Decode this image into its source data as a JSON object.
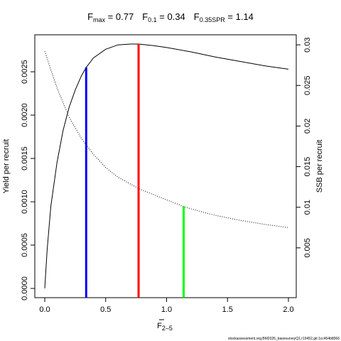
{
  "chart_data": {
    "type": "line",
    "title": {
      "items": [
        {
          "symbol": "F",
          "subscript": "max",
          "value": "0.77"
        },
        {
          "symbol": "F",
          "subscript": "0.1",
          "value": "0.34"
        },
        {
          "symbol": "F",
          "subscript": "0.35SPR",
          "value": "1.14"
        }
      ]
    },
    "xlabel": {
      "symbol": "F",
      "subscript": "2–5",
      "overline": true
    },
    "ylabel": "Yield per recruit",
    "y2label": "SSB per recruit",
    "xlim": [
      0,
      2.0
    ],
    "ylim": [
      0,
      0.00282
    ],
    "y2lim": [
      0,
      0.0301
    ],
    "x_ticks": [
      {
        "value": 0.0,
        "label": "0.0"
      },
      {
        "value": 0.5,
        "label": "0.5"
      },
      {
        "value": 1.0,
        "label": "1.0"
      },
      {
        "value": 1.5,
        "label": "1.5"
      },
      {
        "value": 2.0,
        "label": "2.0"
      }
    ],
    "y_ticks": [
      {
        "value": 0.0,
        "label": "0.0000"
      },
      {
        "value": 0.0005,
        "label": "0.0005"
      },
      {
        "value": 0.001,
        "label": "0.0010"
      },
      {
        "value": 0.0015,
        "label": "0.0015"
      },
      {
        "value": 0.002,
        "label": "0.0020"
      },
      {
        "value": 0.0025,
        "label": "0.0025"
      }
    ],
    "y2_ticks": [
      {
        "value": 0.005,
        "label": "0.005"
      },
      {
        "value": 0.01,
        "label": "0.01"
      },
      {
        "value": 0.015,
        "label": "0.015"
      },
      {
        "value": 0.02,
        "label": "0.02"
      },
      {
        "value": 0.025,
        "label": "0.025"
      },
      {
        "value": 0.03,
        "label": "0.03"
      }
    ],
    "series": [
      {
        "axis": "left",
        "style": "solid",
        "color": "#000000",
        "points": [
          [
            0.0,
            0.0
          ],
          [
            0.02,
            0.00045
          ],
          [
            0.05,
            0.00095
          ],
          [
            0.1,
            0.00145
          ],
          [
            0.15,
            0.00182
          ],
          [
            0.2,
            0.00209
          ],
          [
            0.25,
            0.00229
          ],
          [
            0.3,
            0.00245
          ],
          [
            0.34,
            0.00255
          ],
          [
            0.4,
            0.00266
          ],
          [
            0.5,
            0.00276
          ],
          [
            0.6,
            0.00281
          ],
          [
            0.7,
            0.00282
          ],
          [
            0.77,
            0.00282
          ],
          [
            0.9,
            0.0028
          ],
          [
            1.0,
            0.00278
          ],
          [
            1.2,
            0.00273
          ],
          [
            1.4,
            0.00267
          ],
          [
            1.6,
            0.00262
          ],
          [
            1.8,
            0.00257
          ],
          [
            2.0,
            0.00253
          ]
        ]
      },
      {
        "axis": "right",
        "style": "dotted",
        "color": "#000000",
        "points": [
          [
            0.0,
            0.0292
          ],
          [
            0.1,
            0.0247
          ],
          [
            0.2,
            0.0211
          ],
          [
            0.3,
            0.0185
          ],
          [
            0.34,
            0.0177
          ],
          [
            0.4,
            0.0165
          ],
          [
            0.5,
            0.0149
          ],
          [
            0.6,
            0.0137
          ],
          [
            0.77,
            0.0123
          ],
          [
            1.0,
            0.0109
          ],
          [
            1.14,
            0.0101
          ],
          [
            1.2,
            0.0098
          ],
          [
            1.4,
            0.009
          ],
          [
            1.6,
            0.0084
          ],
          [
            1.8,
            0.0079
          ],
          [
            2.0,
            0.0075
          ]
        ]
      }
    ],
    "reference_lines": [
      {
        "x": 0.34,
        "y_end": 0.00255,
        "axis": "left",
        "color": "#0000ff"
      },
      {
        "x": 0.77,
        "y_end": 0.00282,
        "axis": "left",
        "color": "#ff0000"
      },
      {
        "x": 1.14,
        "y_end": 0.0101,
        "axis": "right",
        "color": "#00ff00"
      }
    ],
    "grid": false,
    "legend": "none"
  },
  "footer": {
    "credit": "stockassessment.org,BM2026_basesurveyQ1,r19452,git:1cc464b8066"
  }
}
